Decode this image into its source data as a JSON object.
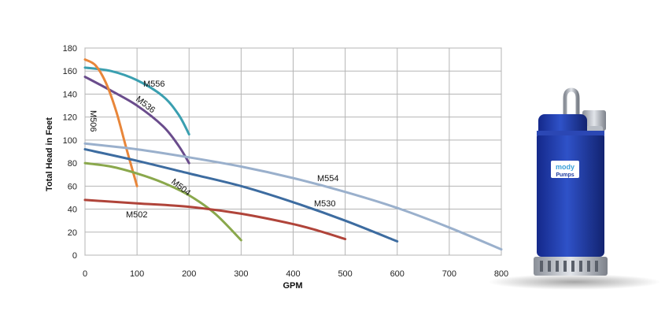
{
  "chart_data": {
    "type": "line",
    "title": "",
    "xlabel": "GPM",
    "ylabel": "Total Head in Feet",
    "xlim": [
      0,
      800
    ],
    "ylim": [
      0,
      180
    ],
    "x_ticks": [
      0,
      100,
      200,
      300,
      400,
      500,
      600,
      700,
      800
    ],
    "y_ticks": [
      0,
      20,
      40,
      60,
      80,
      100,
      120,
      140,
      160,
      180
    ],
    "grid": true,
    "legend": "none (series labeled inline)",
    "series": [
      {
        "name": "M556",
        "color": "#3a9fb0",
        "points": [
          [
            0,
            163
          ],
          [
            50,
            160
          ],
          [
            100,
            152
          ],
          [
            150,
            138
          ],
          [
            180,
            122
          ],
          [
            200,
            105
          ]
        ]
      },
      {
        "name": "M536",
        "color": "#6a4c8c",
        "points": [
          [
            0,
            155
          ],
          [
            50,
            143
          ],
          [
            100,
            130
          ],
          [
            150,
            112
          ],
          [
            180,
            95
          ],
          [
            200,
            80
          ]
        ]
      },
      {
        "name": "M506",
        "color": "#e8863a",
        "points": [
          [
            0,
            170
          ],
          [
            20,
            165
          ],
          [
            40,
            150
          ],
          [
            60,
            125
          ],
          [
            80,
            92
          ],
          [
            100,
            60
          ]
        ]
      },
      {
        "name": "M554",
        "color": "#9ab0cc",
        "points": [
          [
            0,
            97
          ],
          [
            100,
            92
          ],
          [
            200,
            85
          ],
          [
            300,
            77
          ],
          [
            400,
            67
          ],
          [
            500,
            55
          ],
          [
            600,
            41
          ],
          [
            700,
            24
          ],
          [
            800,
            5
          ]
        ]
      },
      {
        "name": "M530",
        "color": "#3d6ca0",
        "points": [
          [
            0,
            92
          ],
          [
            100,
            82
          ],
          [
            200,
            71
          ],
          [
            300,
            60
          ],
          [
            400,
            46
          ],
          [
            500,
            30
          ],
          [
            600,
            12
          ]
        ]
      },
      {
        "name": "M504",
        "color": "#8aa84c",
        "points": [
          [
            0,
            80
          ],
          [
            50,
            77
          ],
          [
            100,
            71
          ],
          [
            150,
            63
          ],
          [
            200,
            52
          ],
          [
            250,
            36
          ],
          [
            300,
            13
          ]
        ]
      },
      {
        "name": "M502",
        "color": "#b0443a",
        "points": [
          [
            0,
            48
          ],
          [
            100,
            45
          ],
          [
            200,
            42
          ],
          [
            300,
            36
          ],
          [
            400,
            27
          ],
          [
            450,
            21
          ],
          [
            500,
            14
          ]
        ]
      }
    ]
  },
  "product_image": {
    "brand": "mody",
    "product_word": "Pumps",
    "body_color": "#1f3da0",
    "accent_color": "#9fc8e8"
  }
}
